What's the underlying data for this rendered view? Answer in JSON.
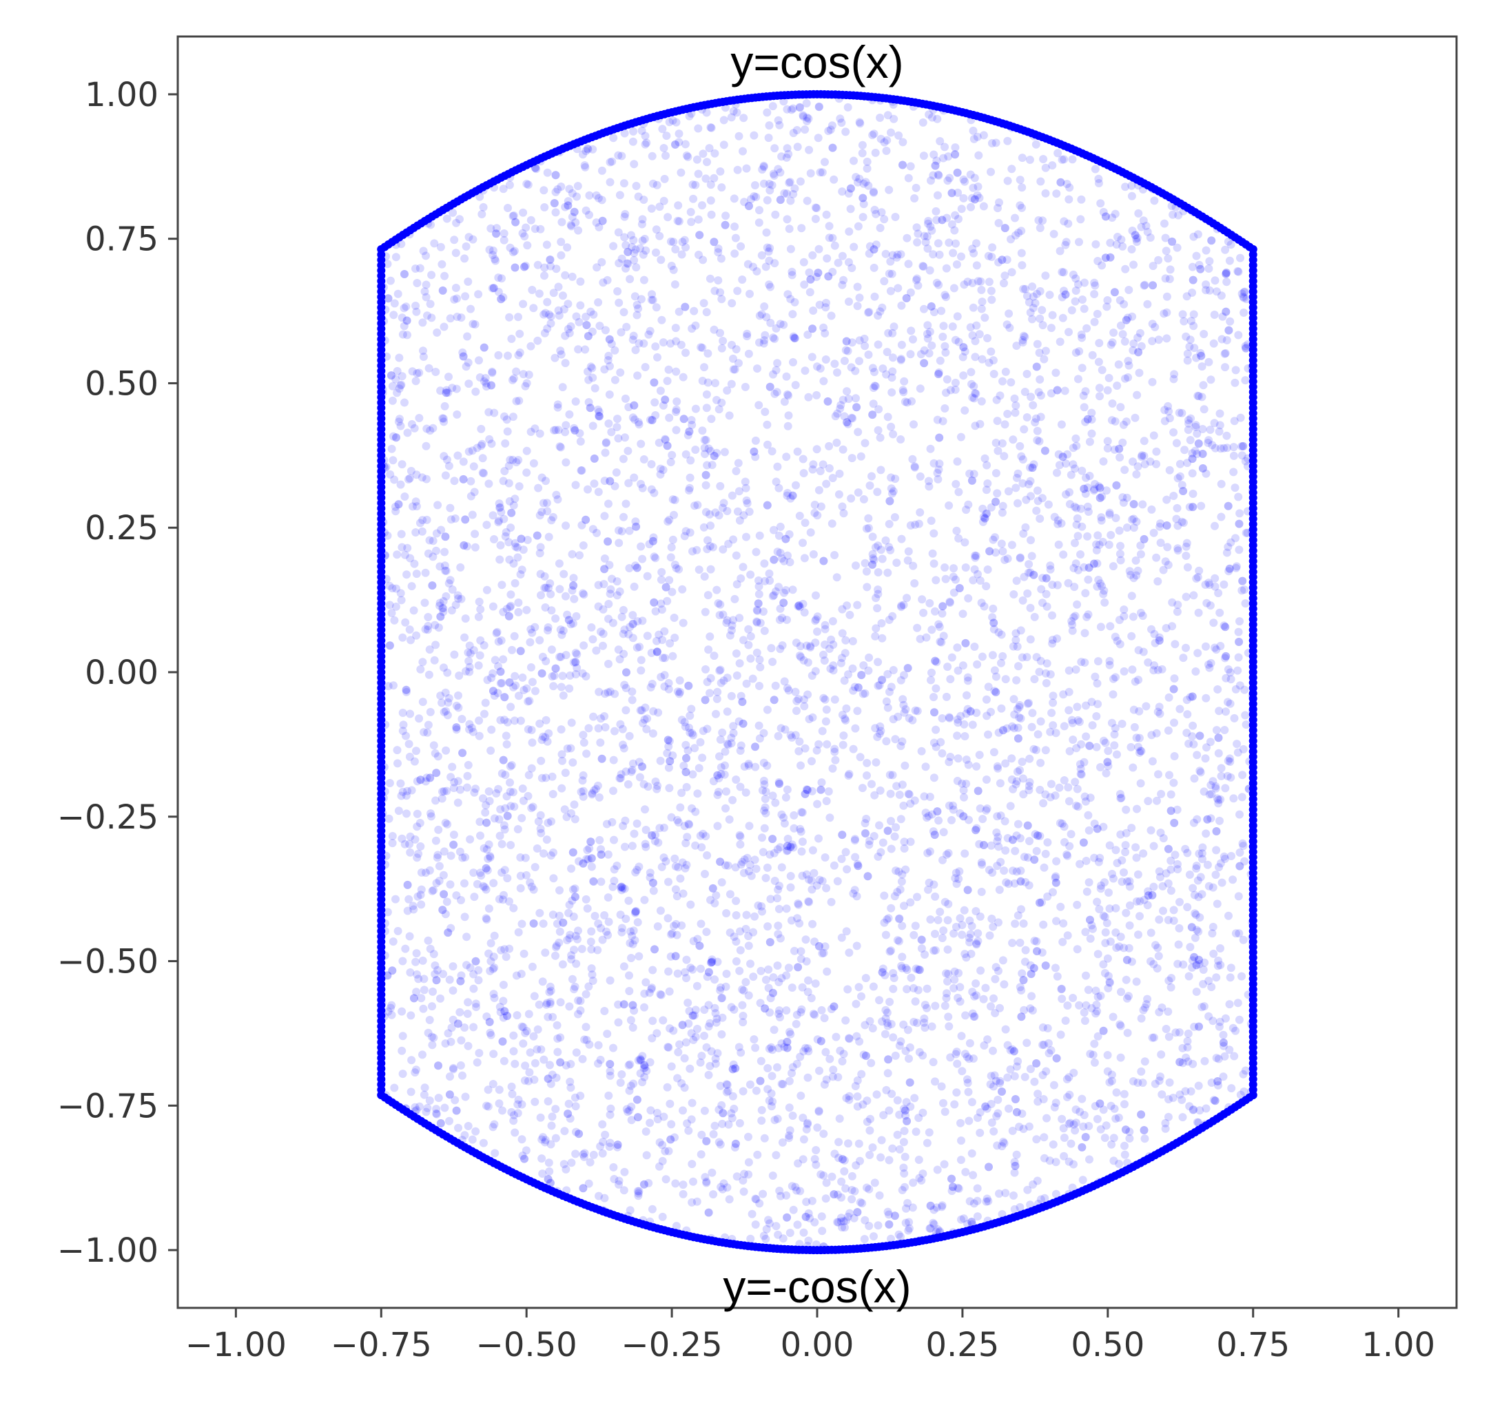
{
  "chart_data": {
    "type": "scatter",
    "title": "",
    "xlabel": "",
    "ylabel": "",
    "xlim": [
      -1.1,
      1.1
    ],
    "ylim": [
      -1.1,
      1.1
    ],
    "x_ticks": [
      -1.0,
      -0.75,
      -0.5,
      -0.25,
      0.0,
      0.25,
      0.5,
      0.75,
      1.0
    ],
    "x_tick_labels": [
      "−1.00",
      "−0.75",
      "−0.50",
      "−0.25",
      "0.00",
      "0.25",
      "0.50",
      "0.75",
      "1.00"
    ],
    "y_ticks": [
      1.0,
      0.75,
      0.5,
      0.25,
      0.0,
      -0.25,
      -0.5,
      -0.75,
      -1.0
    ],
    "y_tick_labels": [
      "1.00",
      "0.75",
      "0.50",
      "0.25",
      "0.00",
      "−0.25",
      "−0.50",
      "−0.75",
      "−1.00"
    ],
    "grid": false,
    "legend": "none",
    "region": {
      "x_range": [
        -0.75,
        0.75
      ],
      "upper_boundary": "y = cos(x)",
      "lower_boundary": "y = -cos(x)"
    },
    "annotations": [
      {
        "text": "y=cos(x)",
        "x": 0.0,
        "y": 1.0,
        "position": "above"
      },
      {
        "text": "y=-cos(x)",
        "x": 0.0,
        "y": -1.0,
        "position": "below"
      }
    ],
    "series": [
      {
        "kind": "random-points-in-region",
        "count": 6000,
        "color": "#0000ff",
        "opacity": 0.15
      },
      {
        "kind": "boundary-points",
        "count": 800,
        "color": "#0000ff",
        "opacity": 1.0
      }
    ]
  }
}
